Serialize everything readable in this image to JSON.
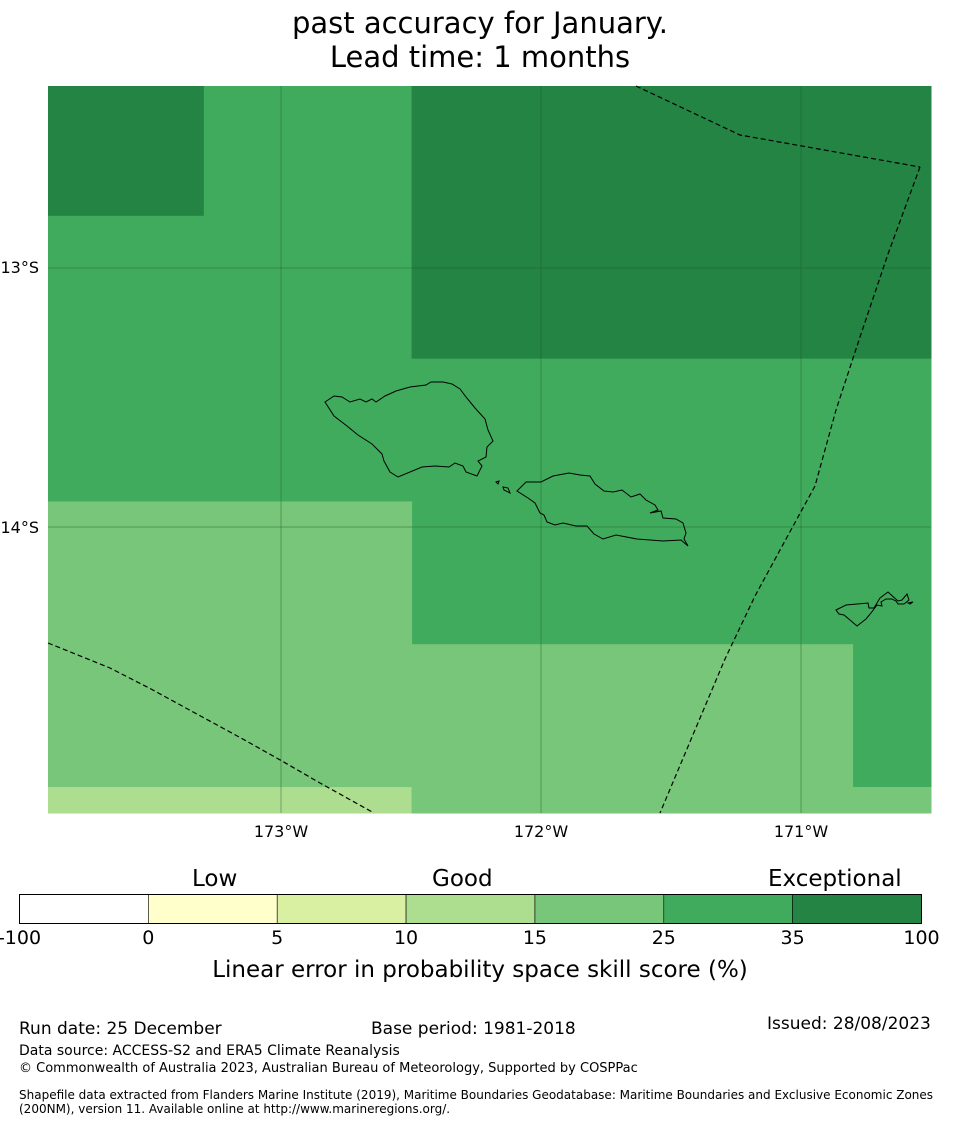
{
  "title": {
    "line1": "past accuracy for January.",
    "line2": "Lead time: 1 months"
  },
  "map": {
    "lat_labels": [
      "13°S",
      "14°S"
    ],
    "lon_labels": [
      "173°W",
      "172°W",
      "171°W"
    ],
    "extent": {
      "lon_min": -173.9,
      "lon_max": -170.5,
      "lat_min": -15.1,
      "lat_max": -12.3
    },
    "grid_cells": [
      {
        "lon": [
          -173.9,
          -173.3
        ],
        "lat": [
          -12.3,
          -12.8
        ],
        "category": "35-100"
      },
      {
        "lon": [
          -173.3,
          -172.5
        ],
        "lat": [
          -12.3,
          -12.8
        ],
        "category": "25-35"
      },
      {
        "lon": [
          -173.9,
          -172.5
        ],
        "lat": [
          -12.8,
          -13.9
        ],
        "category": "25-35"
      },
      {
        "lon": [
          -172.5,
          -170.5
        ],
        "lat": [
          -12.3,
          -13.35
        ],
        "category": "35-100"
      },
      {
        "lon": [
          -172.5,
          -170.5
        ],
        "lat": [
          -13.35,
          -14.45
        ],
        "category": "25-35"
      },
      {
        "lon": [
          -173.9,
          -172.5
        ],
        "lat": [
          -13.9,
          -15.0
        ],
        "category": "15-25"
      },
      {
        "lon": [
          -173.9,
          -172.5
        ],
        "lat": [
          -15.0,
          -15.1
        ],
        "category": "10-15"
      },
      {
        "lon": [
          -172.5,
          -170.8
        ],
        "lat": [
          -14.45,
          -15.1
        ],
        "category": "15-25"
      },
      {
        "lon": [
          -170.8,
          -170.5
        ],
        "lat": [
          -14.45,
          -15.0
        ],
        "category": "25-35"
      },
      {
        "lon": [
          -170.8,
          -170.5
        ],
        "lat": [
          -15.0,
          -15.1
        ],
        "category": "15-25"
      }
    ]
  },
  "colorbar": {
    "category_labels": [
      "Low",
      "Good",
      "Exceptional"
    ],
    "ticks": [
      "-100",
      "0",
      "5",
      "10",
      "15",
      "25",
      "35",
      "100"
    ],
    "colors": [
      "#ffffff",
      "#ffffcc",
      "#d9f0a3",
      "#addd8e",
      "#78c679",
      "#41ab5d",
      "#238443"
    ],
    "label": "Linear error in probability space skill score (%)"
  },
  "footer": {
    "run_date": "Run date: 25 December",
    "base_period": "Base period: 1981-2018",
    "issued": "Issued: 28/08/2023",
    "data_source": "Data source: ACCESS-S2 and ERA5 Climate Reanalysis",
    "copyright": "© Commonwealth of Australia 2023, Australian Bureau of Meteorology, Supported by COSPPac",
    "shapefile_note": "Shapefile data extracted from Flanders Marine Institute (2019), Maritime Boundaries Geodatabase: Maritime Boundaries and Exclusive Economic Zones (200NM), version 11. Available online at http://www.marineregions.org/."
  }
}
